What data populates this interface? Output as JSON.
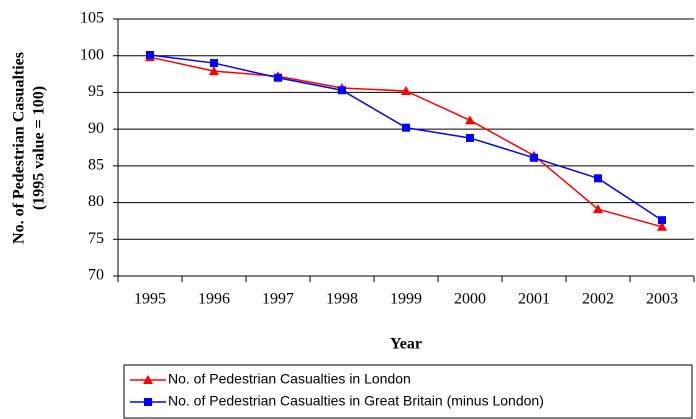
{
  "chart_data": {
    "type": "line",
    "xlabel": "Year",
    "ylabel": [
      "No. of Pedestrian Casualties",
      "(1995 value = 100)"
    ],
    "categories": [
      "1995",
      "1996",
      "1997",
      "1998",
      "1999",
      "2000",
      "2001",
      "2002",
      "2003"
    ],
    "series": [
      {
        "name": "No. of Pedestrian Casualties in London",
        "color": "#ff0000",
        "marker": "triangle",
        "values": [
          99.8,
          97.9,
          97.2,
          95.6,
          95.2,
          91.2,
          86.4,
          79.1,
          76.7
        ]
      },
      {
        "name": "No. of Pedestrian Casualties in Great Britain (minus London)",
        "color": "#0000ff",
        "marker": "square",
        "values": [
          100.1,
          99.0,
          97.0,
          95.3,
          90.2,
          88.8,
          86.1,
          83.3,
          77.6
        ]
      }
    ],
    "ylim": [
      70,
      105
    ],
    "yticks": [
      70,
      75,
      80,
      85,
      90,
      95,
      100,
      105
    ],
    "grid": true
  }
}
